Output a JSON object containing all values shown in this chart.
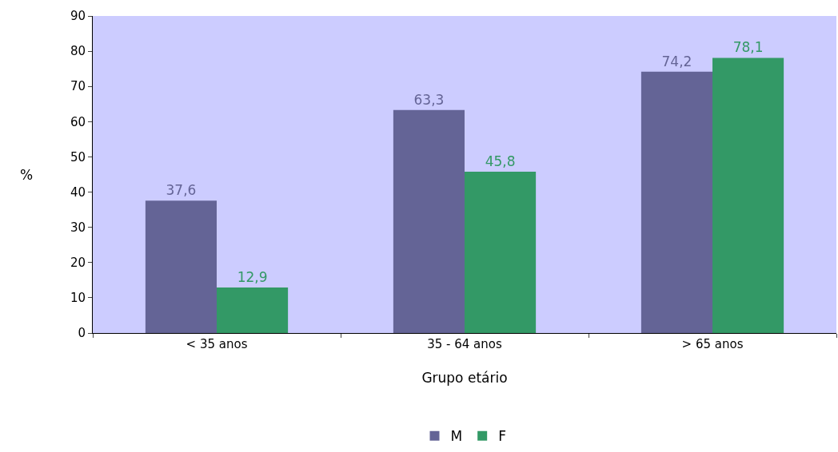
{
  "chart_data": {
    "type": "bar",
    "xlabel": "Grupo etário",
    "ylabel": "%",
    "categories": [
      "< 35 anos",
      "35 - 64 anos",
      "> 65 anos"
    ],
    "series": [
      {
        "name": "M",
        "color": "#646496",
        "values": [
          37.6,
          63.3,
          74.2
        ],
        "value_labels": [
          "37,6",
          "63,3",
          "74,2"
        ]
      },
      {
        "name": "F",
        "color": "#339966",
        "values": [
          12.9,
          45.8,
          78.1
        ],
        "value_labels": [
          "12,9",
          "45,8",
          "78,1"
        ]
      }
    ],
    "ylim": [
      0,
      90
    ],
    "yticks": [
      0,
      10,
      20,
      30,
      40,
      50,
      60,
      70,
      80,
      90
    ],
    "grid": false,
    "legend": "bottom"
  }
}
